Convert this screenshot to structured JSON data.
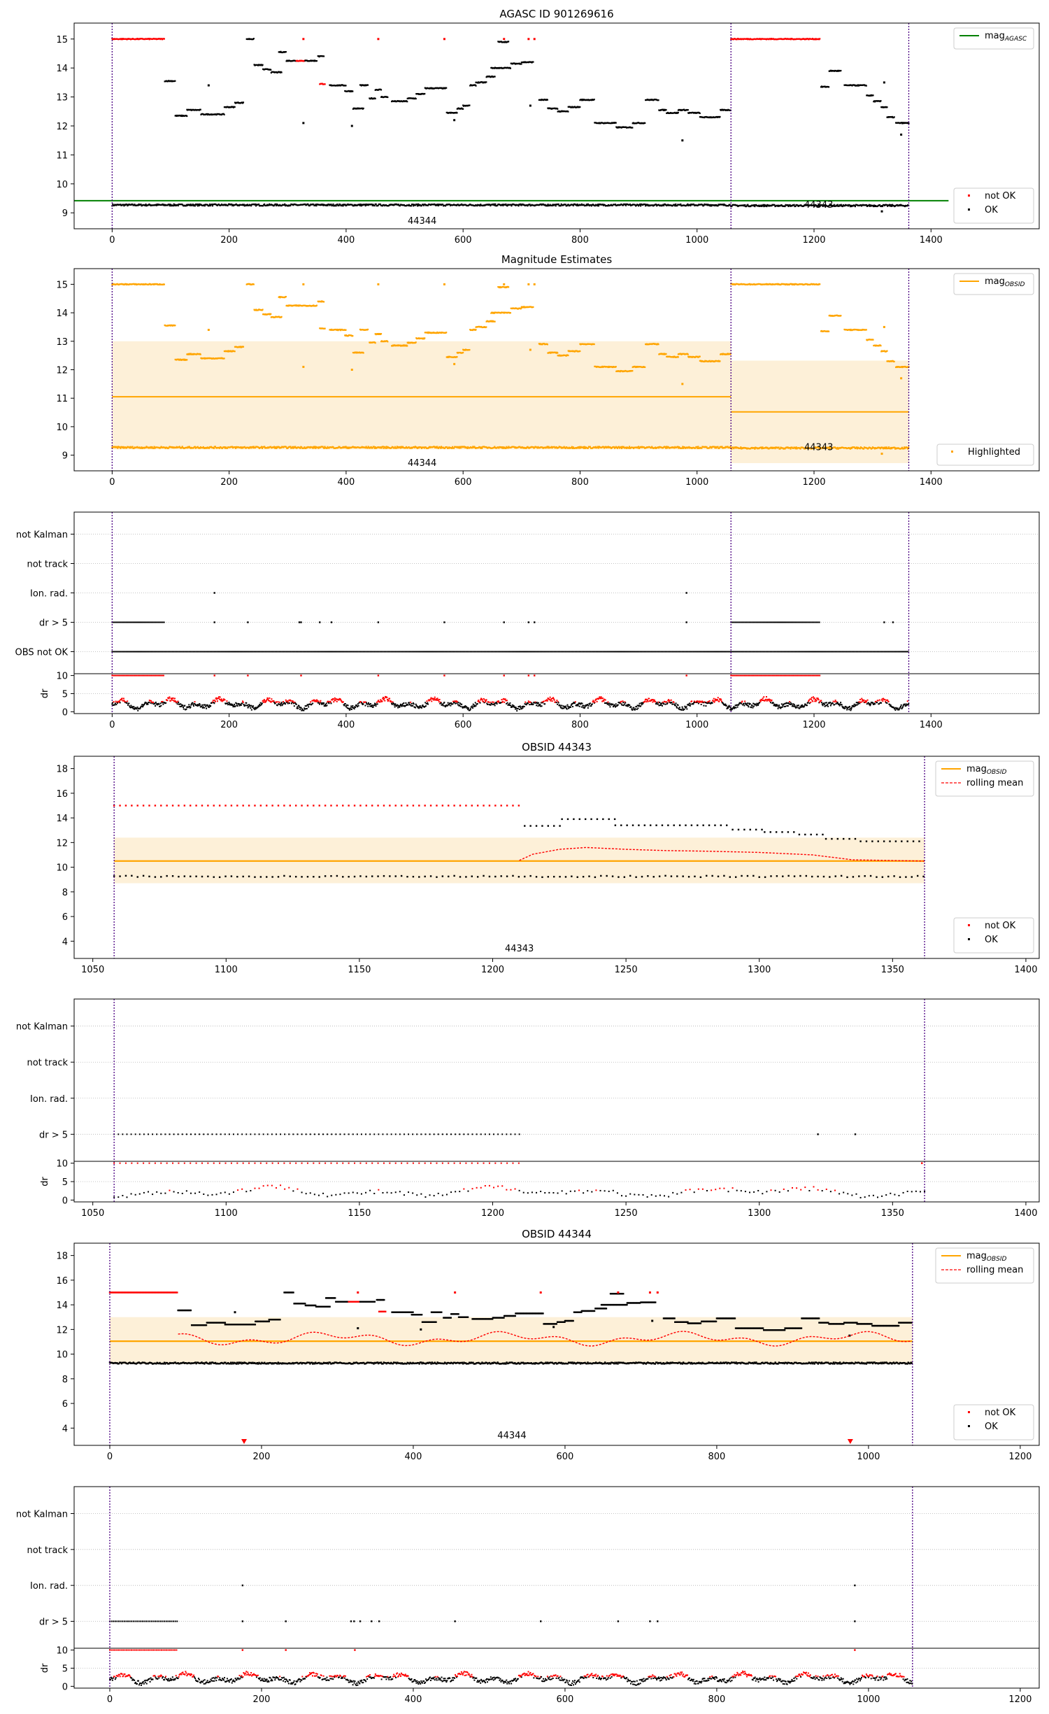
{
  "figure": {
    "background": "#ffffff"
  },
  "colors": {
    "ok": "#000000",
    "not_ok": "#ff0000",
    "agasc_line": "#008000",
    "obsid_line": "#ffa500",
    "band": "#fdf0d8",
    "vline": "#4b0082",
    "rolling": "#ff0000",
    "grid": "#b0b0b0"
  },
  "chart_data": [
    {
      "id": "agasc",
      "type": "scatter",
      "title": "AGASC ID 901269616",
      "xlim": [
        -65,
        1585
      ],
      "ylim": [
        8.45,
        15.55
      ],
      "xticks": [
        0,
        200,
        400,
        600,
        800,
        1000,
        1200,
        1400
      ],
      "yticks": [
        9,
        10,
        11,
        12,
        13,
        14,
        15
      ],
      "hlines": [
        {
          "y": 9.42,
          "x0": -65,
          "x1": 1430,
          "color": "green",
          "label": "mag_AGASC"
        }
      ],
      "vlines": [
        0,
        1058,
        1362
      ],
      "annotations": [
        {
          "x": 530,
          "y": 8.72,
          "text": "44344"
        },
        {
          "x": 1208,
          "y": 9.27,
          "text": "44343"
        }
      ],
      "baseline": [
        {
          "x0": 0,
          "x1": 1058,
          "y": 9.27
        },
        {
          "x0": 1058,
          "x1": 1362,
          "y": 9.25
        }
      ],
      "segments": [
        {
          "x0": 0,
          "x1": 90,
          "y": 15.0,
          "ok": false
        },
        {
          "x0": 90,
          "x1": 108,
          "y": 13.55,
          "ok": true
        },
        {
          "x0": 108,
          "x1": 128,
          "y": 12.35,
          "ok": true
        },
        {
          "x0": 128,
          "x1": 152,
          "y": 12.55,
          "ok": true
        },
        {
          "x0": 152,
          "x1": 192,
          "y": 12.4,
          "ok": true
        },
        {
          "x0": 192,
          "x1": 210,
          "y": 12.65,
          "ok": true
        },
        {
          "x0": 210,
          "x1": 225,
          "y": 12.8,
          "ok": true
        },
        {
          "x0": 230,
          "x1": 243,
          "y": 15.0,
          "ok": true
        },
        {
          "x0": 243,
          "x1": 258,
          "y": 14.1,
          "ok": true
        },
        {
          "x0": 258,
          "x1": 272,
          "y": 13.95,
          "ok": true
        },
        {
          "x0": 272,
          "x1": 290,
          "y": 13.85,
          "ok": true
        },
        {
          "x0": 285,
          "x1": 298,
          "y": 14.55,
          "ok": true
        },
        {
          "x0": 298,
          "x1": 315,
          "y": 14.25,
          "ok": true
        },
        {
          "x0": 315,
          "x1": 330,
          "y": 14.25,
          "ok": false
        },
        {
          "x0": 330,
          "x1": 350,
          "y": 14.25,
          "ok": true
        },
        {
          "x0": 355,
          "x1": 364,
          "y": 13.45,
          "ok": false
        },
        {
          "x0": 352,
          "x1": 362,
          "y": 14.4,
          "ok": true
        },
        {
          "x0": 372,
          "x1": 400,
          "y": 13.4,
          "ok": true
        },
        {
          "x0": 398,
          "x1": 412,
          "y": 13.2,
          "ok": true
        },
        {
          "x0": 412,
          "x1": 430,
          "y": 12.6,
          "ok": true
        },
        {
          "x0": 424,
          "x1": 438,
          "y": 13.4,
          "ok": true
        },
        {
          "x0": 440,
          "x1": 450,
          "y": 12.95,
          "ok": true
        },
        {
          "x0": 450,
          "x1": 460,
          "y": 13.25,
          "ok": true
        },
        {
          "x0": 460,
          "x1": 472,
          "y": 13.0,
          "ok": true
        },
        {
          "x0": 478,
          "x1": 505,
          "y": 12.85,
          "ok": true
        },
        {
          "x0": 505,
          "x1": 520,
          "y": 12.95,
          "ok": true
        },
        {
          "x0": 520,
          "x1": 535,
          "y": 13.1,
          "ok": true
        },
        {
          "x0": 535,
          "x1": 572,
          "y": 13.3,
          "ok": true
        },
        {
          "x0": 572,
          "x1": 590,
          "y": 12.45,
          "ok": true
        },
        {
          "x0": 590,
          "x1": 600,
          "y": 12.6,
          "ok": true
        },
        {
          "x0": 600,
          "x1": 612,
          "y": 12.7,
          "ok": true
        },
        {
          "x0": 612,
          "x1": 622,
          "y": 13.4,
          "ok": true
        },
        {
          "x0": 622,
          "x1": 640,
          "y": 13.5,
          "ok": true
        },
        {
          "x0": 640,
          "x1": 655,
          "y": 13.7,
          "ok": true
        },
        {
          "x0": 648,
          "x1": 682,
          "y": 14.0,
          "ok": true
        },
        {
          "x0": 660,
          "x1": 678,
          "y": 14.9,
          "ok": true
        },
        {
          "x0": 682,
          "x1": 700,
          "y": 14.15,
          "ok": true
        },
        {
          "x0": 700,
          "x1": 720,
          "y": 14.2,
          "ok": true
        },
        {
          "x0": 730,
          "x1": 745,
          "y": 12.9,
          "ok": true
        },
        {
          "x0": 745,
          "x1": 762,
          "y": 12.6,
          "ok": true
        },
        {
          "x0": 762,
          "x1": 780,
          "y": 12.5,
          "ok": true
        },
        {
          "x0": 780,
          "x1": 800,
          "y": 12.65,
          "ok": true
        },
        {
          "x0": 800,
          "x1": 825,
          "y": 12.9,
          "ok": true
        },
        {
          "x0": 825,
          "x1": 862,
          "y": 12.1,
          "ok": true
        },
        {
          "x0": 862,
          "x1": 890,
          "y": 11.95,
          "ok": true
        },
        {
          "x0": 890,
          "x1": 912,
          "y": 12.1,
          "ok": true
        },
        {
          "x0": 912,
          "x1": 935,
          "y": 12.9,
          "ok": true
        },
        {
          "x0": 935,
          "x1": 948,
          "y": 12.55,
          "ok": true
        },
        {
          "x0": 948,
          "x1": 968,
          "y": 12.45,
          "ok": true
        },
        {
          "x0": 968,
          "x1": 985,
          "y": 12.55,
          "ok": true
        },
        {
          "x0": 985,
          "x1": 1005,
          "y": 12.45,
          "ok": true
        },
        {
          "x0": 1005,
          "x1": 1040,
          "y": 12.3,
          "ok": true
        },
        {
          "x0": 1040,
          "x1": 1058,
          "y": 12.55,
          "ok": true
        },
        {
          "x0": 1058,
          "x1": 1210,
          "y": 15.0,
          "ok": false
        },
        {
          "x0": 1212,
          "x1": 1226,
          "y": 13.35,
          "ok": true
        },
        {
          "x0": 1226,
          "x1": 1246,
          "y": 13.9,
          "ok": true
        },
        {
          "x0": 1252,
          "x1": 1290,
          "y": 13.4,
          "ok": true
        },
        {
          "x0": 1290,
          "x1": 1302,
          "y": 13.05,
          "ok": true
        },
        {
          "x0": 1302,
          "x1": 1315,
          "y": 12.85,
          "ok": true
        },
        {
          "x0": 1315,
          "x1": 1325,
          "y": 12.65,
          "ok": true
        },
        {
          "x0": 1325,
          "x1": 1338,
          "y": 12.3,
          "ok": true
        },
        {
          "x0": 1340,
          "x1": 1362,
          "y": 12.1,
          "ok": true
        }
      ],
      "points": [
        {
          "x": 327,
          "y": 15.0,
          "ok": false
        },
        {
          "x": 455,
          "y": 15.0,
          "ok": false
        },
        {
          "x": 568,
          "y": 15.0,
          "ok": false
        },
        {
          "x": 670,
          "y": 15.0,
          "ok": false
        },
        {
          "x": 712,
          "y": 15.0,
          "ok": false
        },
        {
          "x": 722,
          "y": 15.0,
          "ok": false
        },
        {
          "x": 327,
          "y": 12.1,
          "ok": true
        },
        {
          "x": 165,
          "y": 13.4,
          "ok": true
        },
        {
          "x": 410,
          "y": 12.0,
          "ok": true
        },
        {
          "x": 585,
          "y": 12.2,
          "ok": true
        },
        {
          "x": 715,
          "y": 12.7,
          "ok": true
        },
        {
          "x": 975,
          "y": 11.5,
          "ok": true
        },
        {
          "x": 1320,
          "y": 13.5,
          "ok": true
        },
        {
          "x": 1349,
          "y": 11.7,
          "ok": true
        },
        {
          "x": 1316,
          "y": 9.05,
          "ok": true
        }
      ],
      "legends": [
        {
          "pos": "top-right",
          "items": [
            {
              "kind": "line",
              "color": "green",
              "label": "mag",
              "sub": "AGASC"
            }
          ]
        },
        {
          "pos": "bottom-right",
          "items": [
            {
              "kind": "dot",
              "color": "red",
              "label": "not OK"
            },
            {
              "kind": "dot",
              "color": "black",
              "label": "OK"
            }
          ]
        }
      ]
    },
    {
      "id": "estimates",
      "type": "scatter",
      "title": "Magnitude Estimates",
      "xlim": [
        -65,
        1585
      ],
      "ylim": [
        8.45,
        15.55
      ],
      "xticks": [
        0,
        200,
        400,
        600,
        800,
        1000,
        1200,
        1400
      ],
      "yticks": [
        9,
        10,
        11,
        12,
        13,
        14,
        15
      ],
      "bands": [
        {
          "x0": 0,
          "x1": 1058,
          "y0": 9.2,
          "y1": 13.0
        },
        {
          "x0": 1058,
          "x1": 1362,
          "y0": 8.72,
          "y1": 12.32
        }
      ],
      "hlines": [
        {
          "y": 11.05,
          "x0": 0,
          "x1": 1058,
          "color": "orange"
        },
        {
          "y": 10.52,
          "x0": 1058,
          "x1": 1362,
          "color": "orange"
        }
      ],
      "vlines": [
        0,
        1058,
        1362
      ],
      "annotations": [
        {
          "x": 530,
          "y": 8.72,
          "text": "44344"
        },
        {
          "x": 1208,
          "y": 9.27,
          "text": "44343"
        }
      ],
      "color_all": "orange",
      "legends": [
        {
          "pos": "top-right",
          "items": [
            {
              "kind": "line",
              "color": "orange",
              "label": "mag",
              "sub": "OBSID"
            }
          ]
        },
        {
          "pos": "bottom-right",
          "items": [
            {
              "kind": "dot",
              "color": "orange",
              "label": "Highlighted"
            }
          ]
        }
      ]
    },
    {
      "id": "flags-all",
      "type": "scatter",
      "categories": [
        "not Kalman",
        "not track",
        "Ion. rad.",
        "dr > 5",
        "OBS not OK"
      ],
      "xlim": [
        -65,
        1585
      ],
      "flag_points": {
        "Ion. rad.": [
          175,
          982
        ],
        "dr > 5": [
          175,
          232,
          320,
          323,
          355,
          375,
          455,
          568,
          670,
          712,
          722,
          982,
          1320,
          1335
        ]
      },
      "flag_ranges": {
        "dr > 5": [
          [
            0,
            90
          ],
          [
            1058,
            1210
          ]
        ],
        "OBS not OK": [
          [
            0,
            1362
          ]
        ]
      },
      "dr": {
        "ylim": [
          -0.5,
          10.5
        ],
        "yticks": [
          0,
          5,
          10
        ],
        "red_at_10": [
          [
            0,
            90
          ],
          [
            1058,
            1210
          ]
        ],
        "red_at_10_points": [
          175,
          232,
          323,
          455,
          568,
          670,
          712,
          722,
          982
        ]
      },
      "xticks": [
        0,
        200,
        400,
        600,
        800,
        1000,
        1200,
        1400
      ],
      "vlines": [
        0,
        1058,
        1362
      ]
    },
    {
      "id": "obsid-44343",
      "type": "scatter",
      "title": "OBSID 44343",
      "xlim": [
        1043,
        1405
      ],
      "ylim": [
        2.6,
        19.0
      ],
      "xticks": [
        1050,
        1100,
        1150,
        1200,
        1250,
        1300,
        1350,
        1400
      ],
      "yticks": [
        4,
        6,
        8,
        10,
        12,
        14,
        16,
        18
      ],
      "band": {
        "x0": 1058,
        "x1": 1362,
        "y0": 8.7,
        "y1": 12.4
      },
      "mean": 10.5,
      "vlines": [
        1058,
        1362
      ],
      "annotation": {
        "x": 1210,
        "y": 3.4,
        "text": "44343"
      },
      "legends": [
        {
          "pos": "top-right",
          "items": [
            {
              "kind": "line",
              "color": "orange",
              "label": "mag",
              "sub": "OBSID"
            },
            {
              "kind": "dash",
              "color": "red",
              "label": "rolling mean"
            }
          ]
        },
        {
          "pos": "bottom-right",
          "items": [
            {
              "kind": "dot",
              "color": "red",
              "label": "not OK"
            },
            {
              "kind": "dot",
              "color": "black",
              "label": "OK"
            }
          ]
        }
      ],
      "red_segments": [
        {
          "x0": 1058,
          "x1": 1210,
          "y": 15.0
        }
      ],
      "black_segments": [
        {
          "x0": 1212,
          "x1": 1226,
          "y": 13.35
        },
        {
          "x0": 1226,
          "x1": 1246,
          "y": 13.9
        },
        {
          "x0": 1246,
          "x1": 1290,
          "y": 13.4
        },
        {
          "x0": 1290,
          "x1": 1302,
          "y": 13.05
        },
        {
          "x0": 1302,
          "x1": 1315,
          "y": 12.85
        },
        {
          "x0": 1315,
          "x1": 1325,
          "y": 12.65
        },
        {
          "x0": 1325,
          "x1": 1338,
          "y": 12.3
        },
        {
          "x0": 1338,
          "x1": 1362,
          "y": 12.1
        }
      ],
      "baseline": 9.25,
      "rolling": [
        [
          1210,
          10.55
        ],
        [
          1215,
          11.05
        ],
        [
          1225,
          11.45
        ],
        [
          1235,
          11.6
        ],
        [
          1250,
          11.45
        ],
        [
          1265,
          11.35
        ],
        [
          1280,
          11.3
        ],
        [
          1300,
          11.2
        ],
        [
          1320,
          11.0
        ],
        [
          1335,
          10.6
        ],
        [
          1362,
          10.5
        ]
      ]
    },
    {
      "id": "flags-44343",
      "type": "scatter",
      "categories": [
        "not Kalman",
        "not track",
        "Ion. rad.",
        "dr > 5"
      ],
      "xlim": [
        1043,
        1405
      ],
      "xticks": [
        1050,
        1100,
        1150,
        1200,
        1250,
        1300,
        1350,
        1400
      ],
      "flag_ranges": {
        "dr > 5": [
          [
            1058,
            1210
          ]
        ]
      },
      "flag_points": {
        "dr > 5": [
          1322,
          1336
        ]
      },
      "dr": {
        "ylim": [
          -0.5,
          10.5
        ],
        "yticks": [
          0,
          5,
          10
        ],
        "red_at_10": [
          [
            1058,
            1210
          ]
        ],
        "red_at_10_points": [
          1361
        ]
      },
      "vlines": [
        1058,
        1362
      ]
    },
    {
      "id": "obsid-44344",
      "type": "scatter",
      "title": "OBSID 44344",
      "xlim": [
        -47,
        1225
      ],
      "ylim": [
        2.6,
        19.0
      ],
      "xticks": [
        0,
        200,
        400,
        600,
        800,
        1000,
        1200
      ],
      "yticks": [
        4,
        6,
        8,
        10,
        12,
        14,
        16,
        18
      ],
      "band": {
        "x0": 0,
        "x1": 1058,
        "y0": 9.2,
        "y1": 13.0
      },
      "mean": 11.05,
      "vlines": [
        0,
        1058
      ],
      "annotation": {
        "x": 530,
        "y": 3.4,
        "text": "44344"
      },
      "markers_bottom": [
        177,
        976
      ],
      "legends": [
        {
          "pos": "top-right",
          "items": [
            {
              "kind": "line",
              "color": "orange",
              "label": "mag",
              "sub": "OBSID"
            },
            {
              "kind": "dash",
              "color": "red",
              "label": "rolling mean"
            }
          ]
        },
        {
          "pos": "bottom-right",
          "items": [
            {
              "kind": "dot",
              "color": "red",
              "label": "not OK"
            },
            {
              "kind": "dot",
              "color": "black",
              "label": "OK"
            }
          ]
        }
      ],
      "baseline": 9.27
    },
    {
      "id": "flags-44344",
      "type": "scatter",
      "categories": [
        "not Kalman",
        "not track",
        "Ion. rad.",
        "dr > 5"
      ],
      "xlim": [
        -47,
        1225
      ],
      "xticks": [
        0,
        200,
        400,
        600,
        800,
        1000,
        1200
      ],
      "flag_ranges": {
        "dr > 5": [
          [
            0,
            90
          ]
        ]
      },
      "flag_points": {
        "Ion. rad.": [
          175,
          982
        ],
        "dr > 5": [
          175,
          232,
          318,
          322,
          330,
          345,
          355,
          455,
          568,
          670,
          712,
          722,
          982
        ]
      },
      "dr": {
        "ylim": [
          -0.5,
          10.5
        ],
        "yticks": [
          0,
          5,
          10
        ],
        "red_at_10": [
          [
            0,
            90
          ]
        ],
        "red_at_10_points": [
          175,
          232,
          323,
          982
        ]
      },
      "vlines": [
        0,
        1058
      ]
    }
  ]
}
